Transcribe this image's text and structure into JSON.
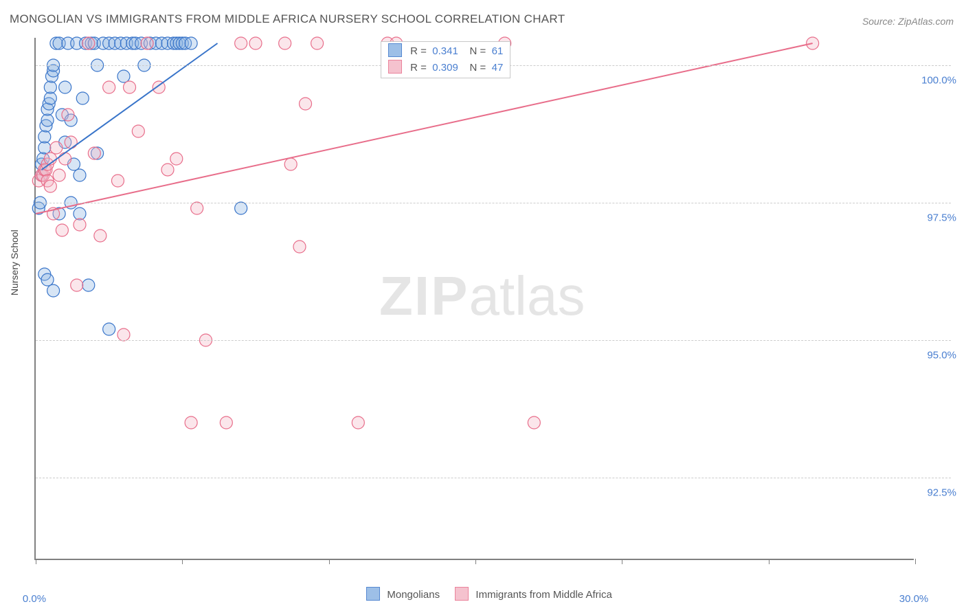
{
  "title": "MONGOLIAN VS IMMIGRANTS FROM MIDDLE AFRICA NURSERY SCHOOL CORRELATION CHART",
  "source": "Source: ZipAtlas.com",
  "watermark_zip": "ZIP",
  "watermark_atlas": "atlas",
  "y_axis_label": "Nursery School",
  "chart": {
    "type": "scatter",
    "background_color": "#ffffff",
    "grid_color": "#cccccc",
    "axis_color": "#808080",
    "text_color": "#555555",
    "value_color": "#4a7fd0",
    "xlim": [
      0.0,
      30.0
    ],
    "ylim": [
      91.0,
      100.5
    ],
    "y_ticks": [
      92.5,
      95.0,
      97.5,
      100.0
    ],
    "y_tick_labels": [
      "92.5%",
      "95.0%",
      "97.5%",
      "100.0%"
    ],
    "x_tick_positions": [
      0,
      5,
      10,
      15,
      20,
      25,
      30
    ],
    "x_tick_labels": {
      "first": "0.0%",
      "last": "30.0%"
    },
    "marker_radius": 9,
    "marker_fill_opacity": 0.35,
    "marker_stroke_width": 1.2,
    "line_width": 2,
    "label_fontsize": 15,
    "title_fontsize": 17,
    "series": [
      {
        "name": "Mongolians",
        "color_fill": "#8db4e3",
        "color_stroke": "#3874c9",
        "r_value": "0.341",
        "n_value": "61",
        "trend": {
          "x1": 0.2,
          "y1": 98.1,
          "x2": 6.2,
          "y2": 100.4
        },
        "points": [
          [
            0.1,
            97.4
          ],
          [
            0.15,
            97.5
          ],
          [
            0.2,
            98.0
          ],
          [
            0.2,
            98.2
          ],
          [
            0.25,
            98.3
          ],
          [
            0.3,
            98.5
          ],
          [
            0.3,
            98.7
          ],
          [
            0.35,
            98.9
          ],
          [
            0.4,
            99.0
          ],
          [
            0.4,
            99.2
          ],
          [
            0.45,
            99.3
          ],
          [
            0.5,
            99.4
          ],
          [
            0.5,
            99.6
          ],
          [
            0.55,
            99.8
          ],
          [
            0.6,
            99.9
          ],
          [
            0.6,
            100.0
          ],
          [
            0.7,
            100.4
          ],
          [
            0.8,
            100.4
          ],
          [
            0.9,
            99.1
          ],
          [
            1.0,
            98.6
          ],
          [
            1.0,
            99.6
          ],
          [
            1.1,
            100.4
          ],
          [
            1.2,
            99.0
          ],
          [
            1.3,
            98.2
          ],
          [
            1.4,
            100.4
          ],
          [
            1.5,
            98.0
          ],
          [
            1.6,
            99.4
          ],
          [
            1.7,
            100.4
          ],
          [
            1.8,
            96.0
          ],
          [
            1.9,
            100.4
          ],
          [
            2.0,
            100.4
          ],
          [
            2.1,
            98.4
          ],
          [
            2.1,
            100.0
          ],
          [
            2.3,
            100.4
          ],
          [
            2.5,
            100.4
          ],
          [
            2.5,
            95.2
          ],
          [
            2.7,
            100.4
          ],
          [
            2.9,
            100.4
          ],
          [
            3.0,
            99.8
          ],
          [
            3.1,
            100.4
          ],
          [
            3.3,
            100.4
          ],
          [
            3.4,
            100.4
          ],
          [
            3.6,
            100.4
          ],
          [
            3.7,
            100.0
          ],
          [
            3.9,
            100.4
          ],
          [
            4.1,
            100.4
          ],
          [
            4.3,
            100.4
          ],
          [
            4.5,
            100.4
          ],
          [
            4.7,
            100.4
          ],
          [
            4.8,
            100.4
          ],
          [
            4.9,
            100.4
          ],
          [
            5.0,
            100.4
          ],
          [
            5.1,
            100.4
          ],
          [
            5.3,
            100.4
          ],
          [
            0.3,
            96.2
          ],
          [
            0.4,
            96.1
          ],
          [
            0.6,
            95.9
          ],
          [
            1.5,
            97.3
          ],
          [
            7.0,
            97.4
          ],
          [
            0.8,
            97.3
          ],
          [
            1.2,
            97.5
          ]
        ]
      },
      {
        "name": "Immigrants from Middle Africa",
        "color_fill": "#f4b8c6",
        "color_stroke": "#e86d8a",
        "r_value": "0.309",
        "n_value": "47",
        "trend": {
          "x1": 0.0,
          "y1": 97.3,
          "x2": 26.5,
          "y2": 100.4
        },
        "points": [
          [
            0.1,
            97.9
          ],
          [
            0.2,
            98.0
          ],
          [
            0.25,
            98.0
          ],
          [
            0.3,
            98.1
          ],
          [
            0.35,
            98.1
          ],
          [
            0.4,
            97.9
          ],
          [
            0.4,
            98.2
          ],
          [
            0.5,
            97.8
          ],
          [
            0.5,
            98.3
          ],
          [
            0.6,
            97.3
          ],
          [
            0.7,
            98.5
          ],
          [
            0.8,
            98.0
          ],
          [
            0.9,
            97.0
          ],
          [
            1.0,
            98.3
          ],
          [
            1.1,
            99.1
          ],
          [
            1.2,
            98.6
          ],
          [
            1.4,
            96.0
          ],
          [
            1.5,
            97.1
          ],
          [
            1.8,
            100.4
          ],
          [
            2.0,
            98.4
          ],
          [
            2.2,
            96.9
          ],
          [
            2.5,
            99.6
          ],
          [
            2.8,
            97.9
          ],
          [
            3.0,
            95.1
          ],
          [
            3.2,
            99.6
          ],
          [
            3.5,
            98.8
          ],
          [
            3.8,
            100.4
          ],
          [
            4.2,
            99.6
          ],
          [
            4.5,
            98.1
          ],
          [
            4.8,
            98.3
          ],
          [
            5.3,
            93.5
          ],
          [
            5.5,
            97.4
          ],
          [
            5.8,
            95.0
          ],
          [
            6.5,
            93.5
          ],
          [
            7.0,
            100.4
          ],
          [
            7.5,
            100.4
          ],
          [
            8.5,
            100.4
          ],
          [
            8.7,
            98.2
          ],
          [
            9.0,
            96.7
          ],
          [
            9.2,
            99.3
          ],
          [
            9.6,
            100.4
          ],
          [
            11.0,
            93.5
          ],
          [
            12.0,
            100.4
          ],
          [
            12.3,
            100.4
          ],
          [
            16.0,
            100.4
          ],
          [
            17.0,
            93.5
          ],
          [
            26.5,
            100.4
          ]
        ]
      }
    ],
    "legend_labels": {
      "r": "R  =",
      "n": "N  ="
    }
  }
}
